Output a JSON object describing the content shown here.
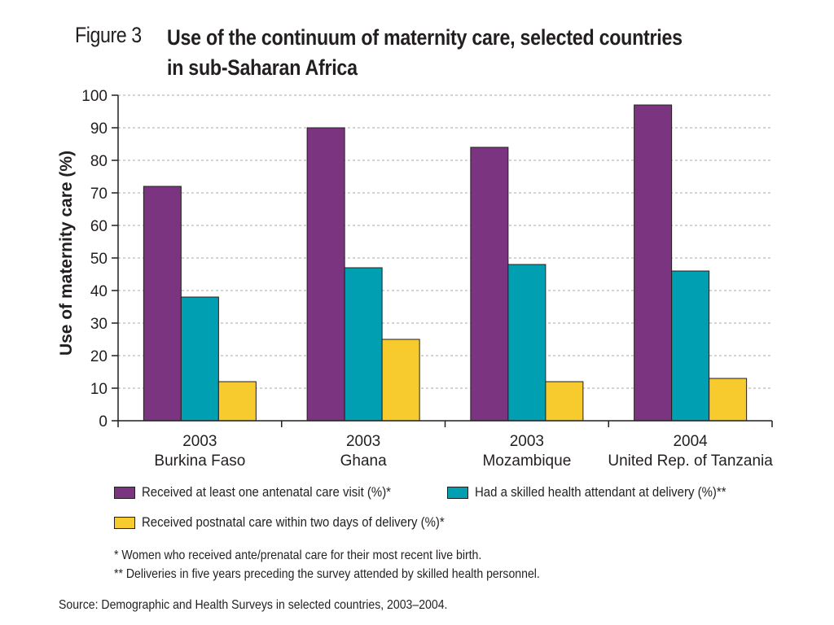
{
  "figure": {
    "label": "Figure 3",
    "title_line1": "Use of the continuum of maternity care, selected countries",
    "title_line2": "in sub-Saharan Africa"
  },
  "chart_data": {
    "type": "bar",
    "categories": [
      {
        "year": "2003",
        "country": "Burkina Faso"
      },
      {
        "year": "2003",
        "country": "Ghana"
      },
      {
        "year": "2003",
        "country": "Mozambique"
      },
      {
        "year": "2004",
        "country": "United Rep. of Tanzania"
      }
    ],
    "series": [
      {
        "name": "Received at least one antenatal care visit (%)*",
        "color": "#7b347f",
        "values": [
          72,
          90,
          84,
          97
        ]
      },
      {
        "name": "Had a skilled health attendant at delivery (%)**",
        "color": "#009fb2",
        "values": [
          38,
          47,
          48,
          46
        ]
      },
      {
        "name": "Received postnatal care within two days of delivery (%)*",
        "color": "#f7ca2e",
        "values": [
          12,
          25,
          12,
          13
        ]
      }
    ],
    "ylabel": "Use of maternity care (%)",
    "ylim": [
      0,
      100
    ],
    "yticks": [
      "0",
      "10",
      "20",
      "30",
      "40",
      "50",
      "60",
      "70",
      "80",
      "90",
      "100"
    ],
    "grid": "dashed horizontal",
    "legend_position": "bottom"
  },
  "notes": {
    "note1": "* Women who received ante/prenatal care for their most recent live birth.",
    "note2": "** Deliveries in five years preceding the survey attended by skilled health personnel.",
    "source": "Source: Demographic and Health Surveys in selected countries, 2003–2004."
  }
}
